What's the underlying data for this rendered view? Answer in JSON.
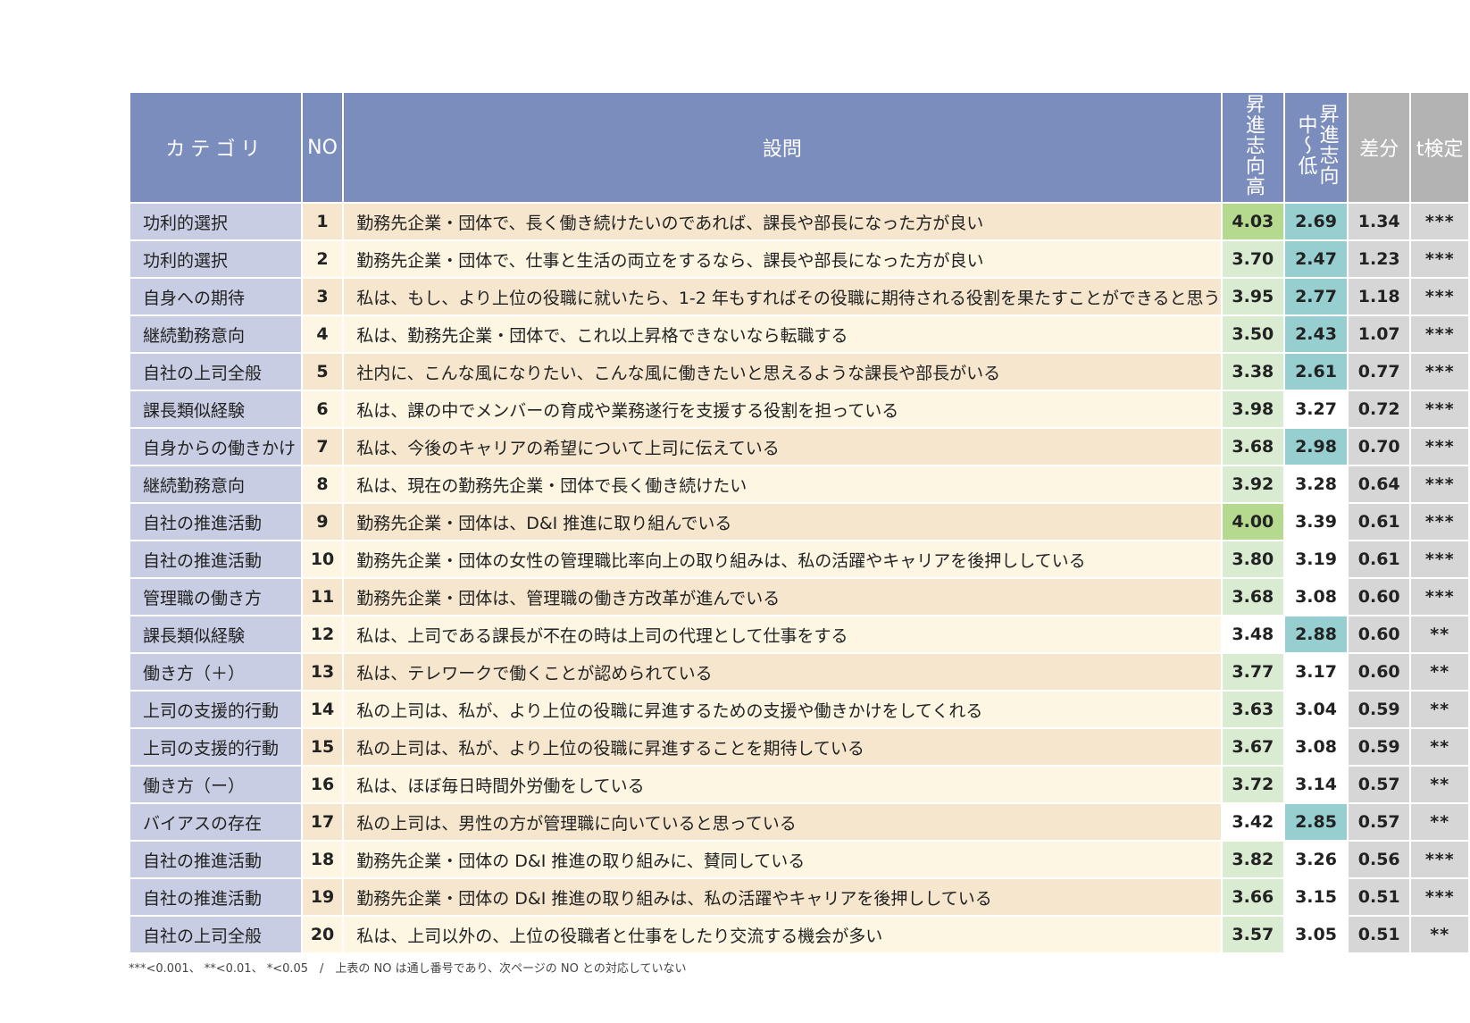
{
  "header": {
    "category": "カテゴリ",
    "no": "NO",
    "question": "設問",
    "high": "昇進志向高",
    "midlow": "昇進志向中〜低",
    "diff": "差分",
    "ttest": "t検定"
  },
  "rows": [
    {
      "category": "功利的選択",
      "no": "1",
      "question": "勤務先企業・団体で、長く働き続けたいのであれば、課長や部長になった方が良い",
      "high": "4.03",
      "low": "2.69",
      "diff": "1.34",
      "sig": "***"
    },
    {
      "category": "功利的選択",
      "no": "2",
      "question": "勤務先企業・団体で、仕事と生活の両立をするなら、課長や部長になった方が良い",
      "high": "3.70",
      "low": "2.47",
      "diff": "1.23",
      "sig": "***"
    },
    {
      "category": "自身への期待",
      "no": "3",
      "question": "私は、もし、より上位の役職に就いたら、1-2 年もすればその役職に期待される役割を果たすことができると思う",
      "high": "3.95",
      "low": "2.77",
      "diff": "1.18",
      "sig": "***"
    },
    {
      "category": "継続勤務意向",
      "no": "4",
      "question": "私は、勤務先企業・団体で、これ以上昇格できないなら転職する",
      "high": "3.50",
      "low": "2.43",
      "diff": "1.07",
      "sig": "***"
    },
    {
      "category": "自社の上司全般",
      "no": "5",
      "question": "社内に、こんな風になりたい、こんな風に働きたいと思えるような課長や部長がいる",
      "high": "3.38",
      "low": "2.61",
      "diff": "0.77",
      "sig": "***"
    },
    {
      "category": "課長類似経験",
      "no": "6",
      "question": "私は、課の中でメンバーの育成や業務遂行を支援する役割を担っている",
      "high": "3.98",
      "low": "3.27",
      "diff": "0.72",
      "sig": "***"
    },
    {
      "category": "自身からの働きかけ",
      "no": "7",
      "question": "私は、今後のキャリアの希望について上司に伝えている",
      "high": "3.68",
      "low": "2.98",
      "diff": "0.70",
      "sig": "***"
    },
    {
      "category": "継続勤務意向",
      "no": "8",
      "question": "私は、現在の勤務先企業・団体で長く働き続けたい",
      "high": "3.92",
      "low": "3.28",
      "diff": "0.64",
      "sig": "***"
    },
    {
      "category": "自社の推進活動",
      "no": "9",
      "question": "勤務先企業・団体は、D&I 推進に取り組んでいる",
      "high": "4.00",
      "low": "3.39",
      "diff": "0.61",
      "sig": "***"
    },
    {
      "category": "自社の推進活動",
      "no": "10",
      "question": "勤務先企業・団体の女性の管理職比率向上の取り組みは、私の活躍やキャリアを後押ししている",
      "high": "3.80",
      "low": "3.19",
      "diff": "0.61",
      "sig": "***"
    },
    {
      "category": "管理職の働き方",
      "no": "11",
      "question": "勤務先企業・団体は、管理職の働き方改革が進んでいる",
      "high": "3.68",
      "low": "3.08",
      "diff": "0.60",
      "sig": "***"
    },
    {
      "category": "課長類似経験",
      "no": "12",
      "question": "私は、上司である課長が不在の時は上司の代理として仕事をする",
      "high": "3.48",
      "low": "2.88",
      "diff": "0.60",
      "sig": "**"
    },
    {
      "category": "働き方（＋）",
      "no": "13",
      "question": "私は、テレワークで働くことが認められている",
      "high": "3.77",
      "low": "3.17",
      "diff": "0.60",
      "sig": "**"
    },
    {
      "category": "上司の支援的行動",
      "no": "14",
      "question": "私の上司は、私が、より上位の役職に昇進するための支援や働きかけをしてくれる",
      "high": "3.63",
      "low": "3.04",
      "diff": "0.59",
      "sig": "**"
    },
    {
      "category": "上司の支援的行動",
      "no": "15",
      "question": "私の上司は、私が、より上位の役職に昇進することを期待している",
      "high": "3.67",
      "low": "3.08",
      "diff": "0.59",
      "sig": "**"
    },
    {
      "category": "働き方（ー）",
      "no": "16",
      "question": "私は、ほぼ毎日時間外労働をしている",
      "high": "3.72",
      "low": "3.14",
      "diff": "0.57",
      "sig": "**"
    },
    {
      "category": "バイアスの存在",
      "no": "17",
      "question": "私の上司は、男性の方が管理職に向いていると思っている",
      "high": "3.42",
      "low": "2.85",
      "diff": "0.57",
      "sig": "**"
    },
    {
      "category": "自社の推進活動",
      "no": "18",
      "question": "勤務先企業・団体の D&I 推進の取り組みに、賛同している",
      "high": "3.82",
      "low": "3.26",
      "diff": "0.56",
      "sig": "***"
    },
    {
      "category": "自社の推進活動",
      "no": "19",
      "question": "勤務先企業・団体の D&I 推進の取り組みは、私の活躍やキャリアを後押ししている",
      "high": "3.66",
      "low": "3.15",
      "diff": "0.51",
      "sig": "***"
    },
    {
      "category": "自社の上司全般",
      "no": "20",
      "question": "私は、上司以外の、上位の役職者と仕事をしたり交流する機会が多い",
      "high": "3.57",
      "low": "3.05",
      "diff": "0.51",
      "sig": "**"
    }
  ],
  "cell_colors": {
    "high": [
      "top",
      "hi",
      "hi",
      "hi",
      "hi",
      "hi",
      "hi",
      "hi",
      "top",
      "hi",
      "hi",
      "plain",
      "hi",
      "hi",
      "hi",
      "hi",
      "plain",
      "hi",
      "hi",
      "hi"
    ],
    "low": [
      "blue",
      "blue",
      "blue",
      "blue",
      "blue",
      "plain",
      "blue",
      "plain",
      "plain",
      "plain",
      "plain",
      "blue",
      "plain",
      "plain",
      "plain",
      "plain",
      "blue",
      "plain",
      "plain",
      "plain"
    ]
  },
  "colors": {
    "header_blue": "#7b8dbd",
    "header_gray": "#b3b3b3",
    "category_bg": "#c9cde3",
    "row_beige": "#f5e6cd",
    "row_cream": "#fcf6e3",
    "green_light": "#d9ecd2",
    "green_strong": "#b5d98f",
    "teal": "#97cfd1",
    "gray_cell": "#d6d6d6"
  },
  "footnote": "***<0.001、 **<0.01、 *<0.05　/　上表の NO は通し番号であり、次ページの NO との対応していない"
}
